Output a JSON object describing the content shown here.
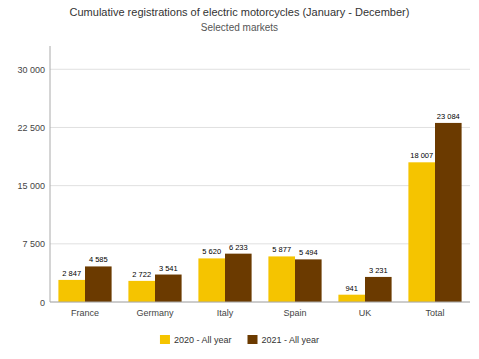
{
  "chart_data": {
    "type": "bar",
    "title": "Cumulative registrations of electric motorcycles (January - December)",
    "subtitle": "Selected markets",
    "categories": [
      "France",
      "Germany",
      "Italy",
      "Spain",
      "UK",
      "Total"
    ],
    "series": [
      {
        "name": "2020 - All year",
        "color": "#F5C400",
        "values": [
          2847,
          2722,
          5620,
          5877,
          941,
          18007
        ],
        "value_labels": [
          "2 847",
          "2 722",
          "5 620",
          "5 877",
          "941",
          "18 007"
        ]
      },
      {
        "name": "2021 - All year",
        "color": "#6B3A00",
        "values": [
          4585,
          3541,
          6233,
          5494,
          3231,
          23084
        ],
        "value_labels": [
          "4 585",
          "3 541",
          "6 233",
          "5 494",
          "3 231",
          "23 084"
        ]
      }
    ],
    "ylim": [
      0,
      33000
    ],
    "yticks": [
      0,
      {
        "value": 7500,
        "label": "7 500"
      },
      {
        "value": 15000,
        "label": "15 000"
      },
      {
        "value": 22500,
        "label": "22 500"
      },
      {
        "value": 30000,
        "label": "30 000"
      }
    ],
    "grid": true,
    "legend": "bottom",
    "data_labels": true
  }
}
